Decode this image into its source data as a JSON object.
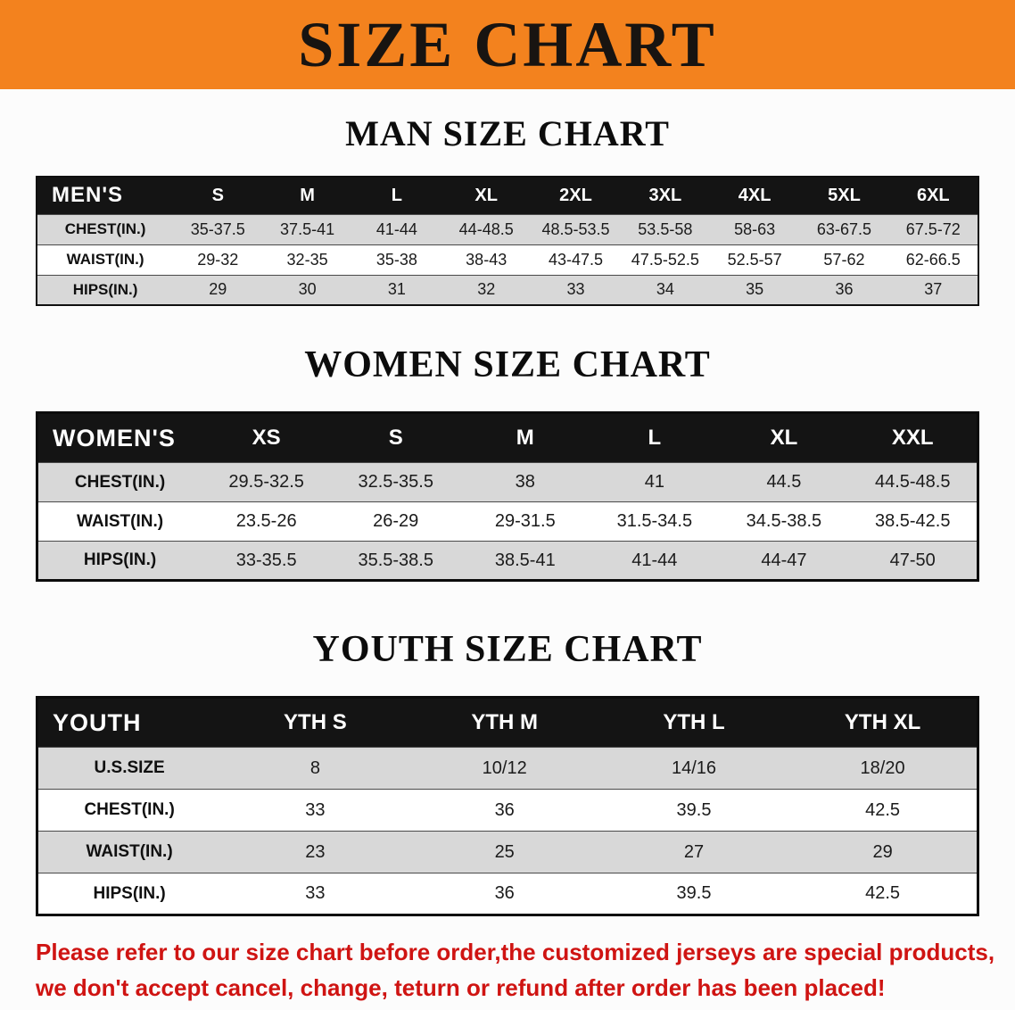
{
  "banner": {
    "title": "SIZE CHART"
  },
  "sections": {
    "men": {
      "heading": "MAN SIZE CHART",
      "table": {
        "header": [
          "MEN'S",
          "S",
          "M",
          "L",
          "XL",
          "2XL",
          "3XL",
          "4XL",
          "5XL",
          "6XL"
        ],
        "rows": [
          {
            "label": "CHEST(IN.)",
            "values": [
              "35-37.5",
              "37.5-41",
              "41-44",
              "44-48.5",
              "48.5-53.5",
              "53.5-58",
              "58-63",
              "63-67.5",
              "67.5-72"
            ]
          },
          {
            "label": "WAIST(IN.)",
            "values": [
              "29-32",
              "32-35",
              "35-38",
              "38-43",
              "43-47.5",
              "47.5-52.5",
              "52.5-57",
              "57-62",
              "62-66.5"
            ]
          },
          {
            "label": "HIPS(IN.)",
            "values": [
              "29",
              "30",
              "31",
              "32",
              "33",
              "34",
              "35",
              "36",
              "37"
            ]
          }
        ]
      }
    },
    "women": {
      "heading": "WOMEN SIZE CHART",
      "table": {
        "header": [
          "WOMEN'S",
          "XS",
          "S",
          "M",
          "L",
          "XL",
          "XXL"
        ],
        "rows": [
          {
            "label": "CHEST(IN.)",
            "values": [
              "29.5-32.5",
              "32.5-35.5",
              "38",
              "41",
              "44.5",
              "44.5-48.5"
            ]
          },
          {
            "label": "WAIST(IN.)",
            "values": [
              "23.5-26",
              "26-29",
              "29-31.5",
              "31.5-34.5",
              "34.5-38.5",
              "38.5-42.5"
            ]
          },
          {
            "label": "HIPS(IN.)",
            "values": [
              "33-35.5",
              "35.5-38.5",
              "38.5-41",
              "41-44",
              "44-47",
              "47-50"
            ]
          }
        ]
      }
    },
    "youth": {
      "heading": "YOUTH SIZE CHART",
      "table": {
        "header": [
          "YOUTH",
          "YTH S",
          "YTH M",
          "YTH L",
          "YTH XL"
        ],
        "rows": [
          {
            "label": "U.S.SIZE",
            "values": [
              "8",
              "10/12",
              "14/16",
              "18/20"
            ]
          },
          {
            "label": "CHEST(IN.)",
            "values": [
              "33",
              "36",
              "39.5",
              "42.5"
            ]
          },
          {
            "label": "WAIST(IN.)",
            "values": [
              "23",
              "25",
              "27",
              "29"
            ]
          },
          {
            "label": "HIPS(IN.)",
            "values": [
              "33",
              "36",
              "39.5",
              "42.5"
            ]
          }
        ]
      }
    }
  },
  "footer": {
    "line1": "Please refer to our size chart before order,the customized jerseys are special products,",
    "line2": "we don't accept cancel, change, teturn or refund after order has been placed!"
  },
  "colors": {
    "banner_bg": "#f3821e",
    "header_bg": "#141414",
    "row_shade": "#d8d8d8",
    "disclaimer": "#cf1412"
  }
}
